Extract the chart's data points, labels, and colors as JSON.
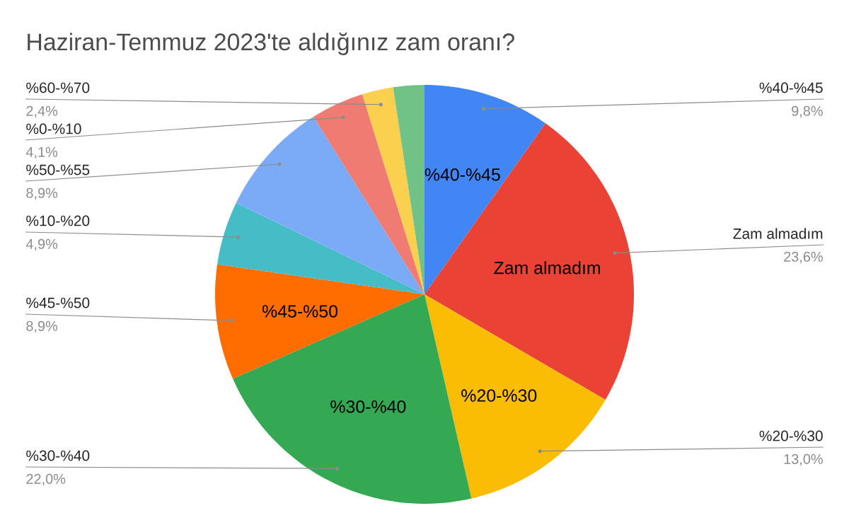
{
  "chart_data": {
    "type": "pie",
    "title": "Haziran-Temmuz 2023'te aldığınız zam oranı?",
    "categories": [
      "%40-%45",
      "Zam almadım",
      "%20-%30",
      "%30-%40",
      "%45-%50",
      "%10-%20",
      "%50-%55",
      "%0-%10",
      "%60-%70",
      null
    ],
    "values": [
      9.8,
      23.6,
      13.0,
      22.0,
      8.9,
      4.9,
      8.9,
      4.1,
      2.4,
      2.4
    ],
    "value_labels": [
      "9,8%",
      "23,6%",
      "13,0%",
      "22,0%",
      "8,9%",
      "4,9%",
      "8,9%",
      "4,1%",
      "2,4%",
      null
    ],
    "colors": [
      "#4285f4",
      "#ea4335",
      "#fbbc04",
      "#34a853",
      "#ff6d01",
      "#46bdc6",
      "#7baaf7",
      "#f07b72",
      "#fcd04f",
      "#71c287"
    ]
  }
}
